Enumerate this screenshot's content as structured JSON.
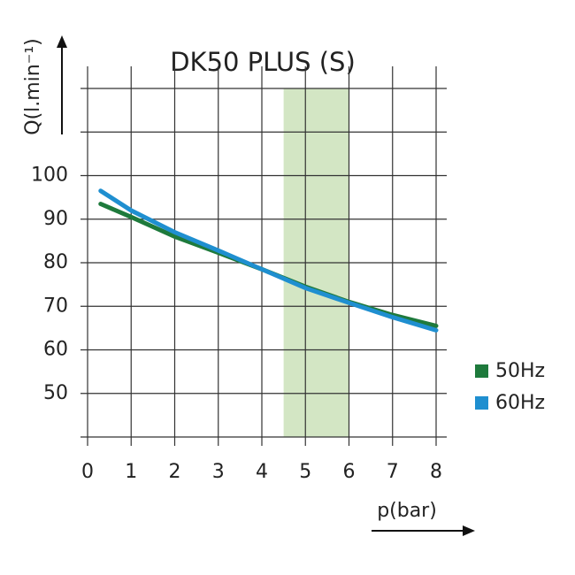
{
  "chart_data": {
    "type": "line",
    "title": "DK50 PLUS (S)",
    "y_label": "Q(l.min⁻¹)",
    "x_label": "p(bar)",
    "x": [
      0.3,
      1,
      2,
      3,
      4,
      5,
      6,
      7,
      8
    ],
    "series": [
      {
        "name": "50Hz",
        "color": "#1e7a3c",
        "values": [
          93.5,
          90.5,
          86,
          82.3,
          78.5,
          74.5,
          71,
          68,
          65.5
        ]
      },
      {
        "name": "60Hz",
        "color": "#1f8fd0",
        "values": [
          96.5,
          92,
          87,
          82.8,
          78.5,
          74.2,
          70.8,
          67.5,
          64.5
        ]
      }
    ],
    "xlim": [
      0,
      8
    ],
    "xticks": [
      0,
      1,
      2,
      3,
      4,
      5,
      6,
      7,
      8
    ],
    "ylim": [
      40,
      120
    ],
    "yticks": [
      50,
      60,
      70,
      80,
      90,
      100
    ],
    "grid_y": [
      40,
      50,
      60,
      70,
      80,
      90,
      100,
      110,
      120
    ],
    "highlight_x": [
      4.5,
      6
    ],
    "highlight_color": "#d3e6c4",
    "grid": true,
    "legend": "right"
  }
}
